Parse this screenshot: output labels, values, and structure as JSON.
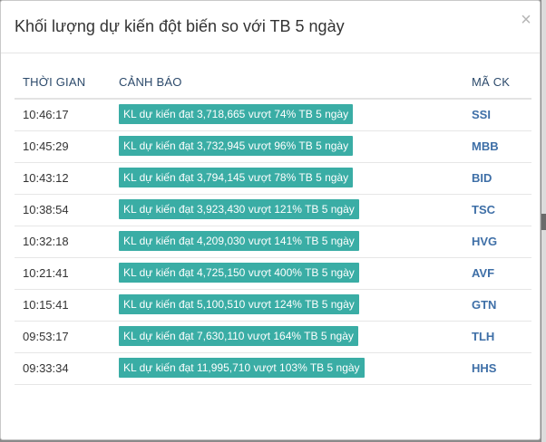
{
  "modal": {
    "title": "Khối lượng dự kiến đột biến so với TB 5 ngày",
    "close_glyph": "×"
  },
  "table": {
    "headers": {
      "time": "THỜI GIAN",
      "alert": "CẢNH BÁO",
      "code": "MÃ CK"
    },
    "rows": [
      {
        "time": "10:46:17",
        "alert": "KL dự kiến đạt 3,718,665 vượt 74% TB 5 ngày",
        "code": "SSI"
      },
      {
        "time": "10:45:29",
        "alert": "KL dự kiến đạt 3,732,945 vượt 96% TB 5 ngày",
        "code": "MBB"
      },
      {
        "time": "10:43:12",
        "alert": "KL dự kiến đạt 3,794,145 vượt 78% TB 5 ngày",
        "code": "BID"
      },
      {
        "time": "10:38:54",
        "alert": "KL dự kiến đạt 3,923,430 vượt 121% TB 5 ngày",
        "code": "TSC"
      },
      {
        "time": "10:32:18",
        "alert": "KL dự kiến đạt 4,209,030 vượt 141% TB 5 ngày",
        "code": "HVG"
      },
      {
        "time": "10:21:41",
        "alert": "KL dự kiến đạt 4,725,150 vượt 400% TB 5 ngày",
        "code": "AVF"
      },
      {
        "time": "10:15:41",
        "alert": "KL dự kiến đạt 5,100,510 vượt 124% TB 5 ngày",
        "code": "GTN"
      },
      {
        "time": "09:53:17",
        "alert": "KL dự kiến đạt 7,630,110 vượt 164% TB 5 ngày",
        "code": "TLH"
      },
      {
        "time": "09:33:34",
        "alert": "KL dự kiến đạt 11,995,710 vượt 103% TB 5 ngày",
        "code": "HHS"
      }
    ]
  },
  "colors": {
    "badge_bg": "#3aada5",
    "code_link": "#3e6fa7",
    "header_text": "#2c4a6b"
  }
}
